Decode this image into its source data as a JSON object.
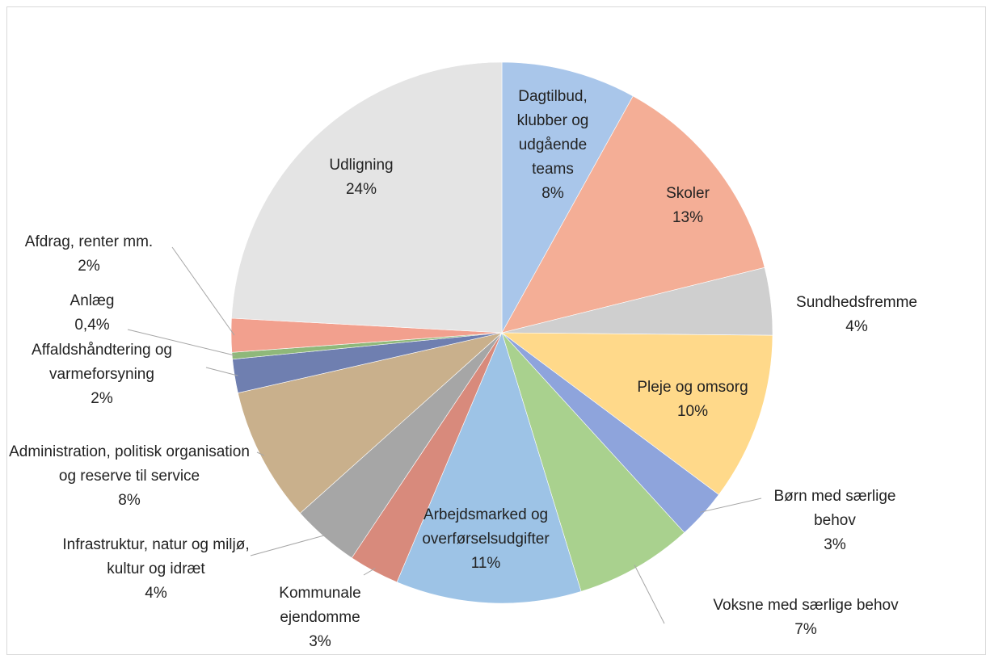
{
  "chart_data": {
    "type": "pie",
    "categories": [
      "Dagtilbud, klubber og udgående teams",
      "Skoler",
      "Sundhedsfremme",
      "Pleje og omsorg",
      "Børn med særlige behov",
      "Voksne med særlige behov",
      "Arbejdsmarked og overførselsudgifter",
      "Kommunale ejendomme",
      "Infrastruktur, natur og miljø, kultur og idræt",
      "Administration, politisk organisation og reserve til service",
      "Affaldshåndtering og varmeforsyning",
      "Anlæg",
      "Afdrag, renter mm.",
      "Udligning"
    ],
    "values": [
      8,
      13,
      4,
      10,
      3,
      7,
      11,
      3,
      4,
      8,
      2,
      0.4,
      2,
      24
    ],
    "value_labels": [
      "8%",
      "13%",
      "4%",
      "10%",
      "3%",
      "7%",
      "11%",
      "3%",
      "4%",
      "8%",
      "2%",
      "0,4%",
      "2%",
      "24%"
    ],
    "colors": [
      "#a9c6ea",
      "#f4ae96",
      "#cfcfcf",
      "#ffd98a",
      "#8ea4dc",
      "#a9d18e",
      "#9dc3e6",
      "#d88a7c",
      "#a6a6a6",
      "#c9b08c",
      "#6f7fb0",
      "#8fb87a",
      "#f2a08e",
      "#e4e4e4"
    ]
  }
}
